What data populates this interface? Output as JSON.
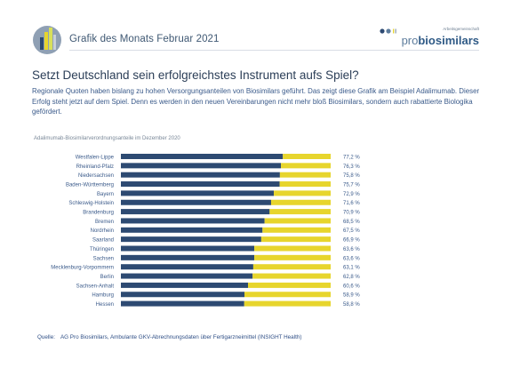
{
  "header": {
    "title": "Grafik des Monats Februar 2021",
    "brand_tagline": "Arbeitsgemeinschaft",
    "brand_prefix": "pro",
    "brand_suffix": "biosimilars"
  },
  "headline": "Setzt Deutschland sein erfolgreichstes Instrument aufs Spiel?",
  "intro": "Regionale Quoten haben bislang zu hohen Versorgungsanteilen von Biosimilars geführt. Das zeigt diese Grafik am Beispiel Adalimumab. Dieser Erfolg steht jetzt auf dem Spiel. Denn es werden in den neuen Vereinbarungen nicht mehr bloß Biosimilars, sondern auch rabattierte Biologika gefördert.",
  "colors": {
    "biosimilar": "#2d4a72",
    "rest": "#e7d52d",
    "text_blue": "#3a5a8a"
  },
  "chart_data": {
    "type": "bar",
    "orientation": "horizontal",
    "stacked": true,
    "title": "Adalimumab-Biosimilarverordnungsanteile im Dezember 2020",
    "categories": [
      "Westfalen-Lippe",
      "Rheinland-Pfalz",
      "Niedersachsen",
      "Baden-Württemberg",
      "Bayern",
      "Schleswig-Holstein",
      "Brandenburg",
      "Bremen",
      "Nordrhein",
      "Saarland",
      "Thüringen",
      "Sachsen",
      "Mecklenburg-Vorpommern",
      "Berlin",
      "Sachsen-Anhalt",
      "Hamburg",
      "Hessen"
    ],
    "values": [
      77.2,
      76.3,
      75.8,
      75.7,
      72.9,
      71.6,
      70.9,
      68.5,
      67.5,
      66.9,
      63.6,
      63.6,
      63.1,
      62.8,
      60.6,
      58.9,
      58.8
    ],
    "value_labels": [
      "77,2 %",
      "76,3 %",
      "75,8 %",
      "75,7 %",
      "72,9 %",
      "71,6 %",
      "70,9 %",
      "68,5 %",
      "67,5 %",
      "66,9 %",
      "63,6 %",
      "63,6 %",
      "63,1 %",
      "62,8 %",
      "60,6 %",
      "58,9 %",
      "58,8 %"
    ],
    "xlim": [
      0,
      100
    ],
    "grid": false,
    "legend": "none"
  },
  "source": {
    "label": "Quelle:",
    "text": "AG Pro Biosimilars, Ambulante GKV-Abrechnungsdaten über Fertigarzneimittel (INSIGHT Health)"
  }
}
